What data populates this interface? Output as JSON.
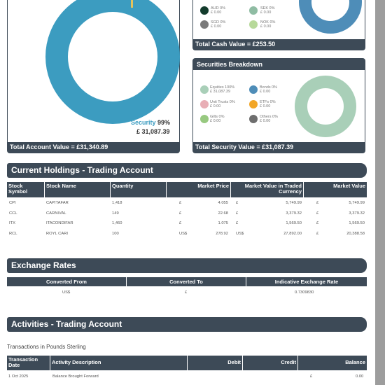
{
  "account_card": {
    "security_label": "Security",
    "security_pct": "99%",
    "security_value": "£ 31,087.39",
    "footer": "Total Account Value = £31,340.89",
    "colors": {
      "security": "#3c9cc0",
      "cash": "#e3c25b"
    }
  },
  "cash_card": {
    "legend": [
      {
        "label": "AUD 0%",
        "sub": "£ 0.00",
        "color": "#123b2c"
      },
      {
        "label": "SEK 0%",
        "sub": "£ 0.00",
        "color": "#8fbca3"
      },
      {
        "label": "SGD 0%",
        "sub": "£ 0.00",
        "color": "#7a7a7a"
      },
      {
        "label": "NOK 0%",
        "sub": "£ 0.00",
        "color": "#b7d99a"
      }
    ],
    "footer": "Total Cash Value = £253.50",
    "donut_color": "#4e8db8"
  },
  "securities_card": {
    "title": "Securities Breakdown",
    "legend": [
      {
        "label": "Equities 100%",
        "sub": "£ 31,087.39",
        "color": "#a9cfb8"
      },
      {
        "label": "Bonds 0%",
        "sub": "£ 0.00",
        "color": "#4e8db8"
      },
      {
        "label": "Unit Trusts 0%",
        "sub": "£ 0.00",
        "color": "#e8aeb5"
      },
      {
        "label": "ETFs 0%",
        "sub": "£ 0.00",
        "color": "#f2a627"
      },
      {
        "label": "Gilts 0%",
        "sub": "£ 0.00",
        "color": "#98c980"
      },
      {
        "label": "Others 0%",
        "sub": "£ 0.00",
        "color": "#6e6e6e"
      }
    ],
    "footer": "Total Security Value = £31,087.39",
    "donut_color": "#a9cfb8"
  },
  "holdings": {
    "title": "Current Holdings - Trading Account",
    "headers": [
      "Stock Symbol",
      "Stock Name",
      "Quantity",
      "Market Price",
      "Market Value in Traded Currency",
      "Market Value"
    ],
    "rows": [
      {
        "symbol": "CPI",
        "name": "CAPITAFAR",
        "qty": "1,418",
        "pcur": "£",
        "price": "4.055",
        "vcur": "£",
        "val": "5,749.99",
        "mcur": "£",
        "mval": "5,749.99"
      },
      {
        "symbol": "CCL",
        "name": "CARNIVAL",
        "qty": "149",
        "pcur": "£",
        "price": "22.68",
        "vcur": "£",
        "val": "3,379.32",
        "mcur": "£",
        "mval": "3,379.32"
      },
      {
        "symbol": "ITX",
        "name": "ITACONDIFAR",
        "qty": "1,460",
        "pcur": "£",
        "price": "1.075",
        "vcur": "£",
        "val": "1,569.50",
        "mcur": "£",
        "mval": "1,569.50"
      },
      {
        "symbol": "RCL",
        "name": "ROYL CARI",
        "qty": "100",
        "pcur": "US$",
        "price": "278.92",
        "vcur": "US$",
        "val": "27,892.00",
        "mcur": "£",
        "mval": "20,388.58"
      }
    ]
  },
  "exchange": {
    "title": "Exchange Rates",
    "headers": [
      "Converted From",
      "Converted To",
      "Indicative Exchange Rate"
    ],
    "row": {
      "from": "US$",
      "to": "£",
      "rate": "0.7309830"
    }
  },
  "activities": {
    "title": "Activities - Trading Account",
    "subtitle": "Transactions in Pounds Sterling",
    "headers": [
      "Transaction Date",
      "Activity Description",
      "Debit",
      "Credit",
      "Balance"
    ],
    "row": {
      "date": "1 Oct 2025",
      "desc": "Balance Brought Forward",
      "cur": "£",
      "balance": "0.00"
    }
  }
}
